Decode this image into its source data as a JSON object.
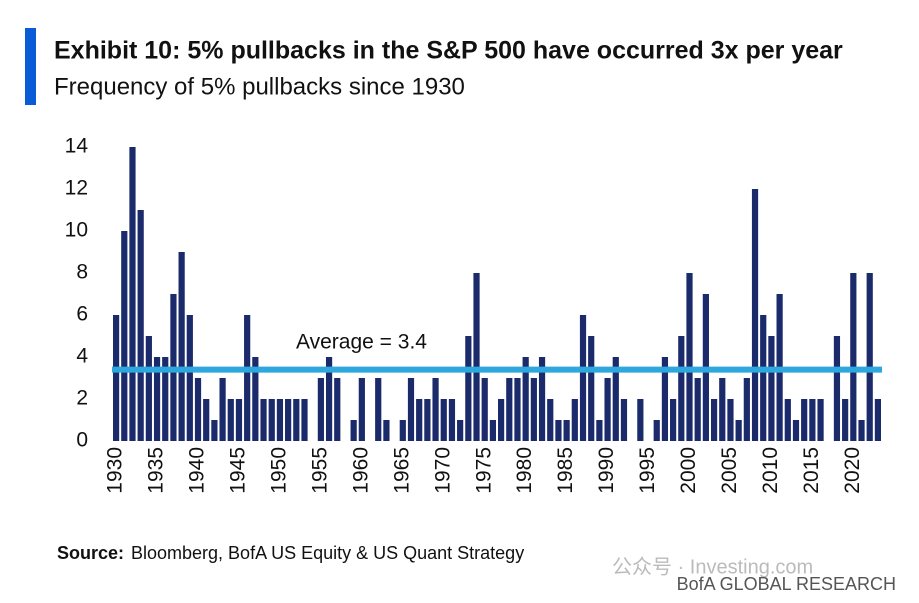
{
  "chart_data": {
    "type": "bar",
    "title": "Exhibit 10: 5% pullbacks in the S&P 500 have occurred 3x per year",
    "subtitle": "Frequency of 5% pullbacks since 1930",
    "categories": [
      "1930",
      null,
      null,
      null,
      null,
      "1935",
      null,
      null,
      null,
      null,
      "1940",
      null,
      null,
      null,
      null,
      "1945",
      null,
      null,
      null,
      null,
      "1950",
      null,
      null,
      null,
      null,
      "1955",
      null,
      null,
      null,
      null,
      "1960",
      null,
      null,
      null,
      null,
      "1965",
      null,
      null,
      null,
      null,
      "1970",
      null,
      null,
      null,
      null,
      "1975",
      null,
      null,
      null,
      null,
      "1980",
      null,
      null,
      null,
      null,
      "1985",
      null,
      null,
      null,
      null,
      "1990",
      null,
      null,
      null,
      null,
      "1995",
      null,
      null,
      null,
      null,
      "2000",
      null,
      null,
      null,
      null,
      "2005",
      null,
      null,
      null,
      null,
      "2010",
      null,
      null,
      null,
      null,
      "2015",
      null,
      null,
      null,
      null,
      "2020",
      null,
      null,
      null
    ],
    "values": [
      6,
      10,
      14,
      11,
      5,
      4,
      4,
      7,
      9,
      6,
      3,
      2,
      1,
      3,
      2,
      2,
      6,
      4,
      2,
      2,
      2,
      2,
      2,
      2,
      0,
      3,
      4,
      3,
      0,
      1,
      3,
      0,
      3,
      1,
      0,
      1,
      3,
      2,
      2,
      3,
      2,
      2,
      1,
      5,
      8,
      3,
      1,
      2,
      3,
      3,
      4,
      3,
      4,
      2,
      1,
      1,
      2,
      6,
      5,
      1,
      3,
      4,
      2,
      0,
      2,
      0,
      1,
      4,
      2,
      5,
      8,
      3,
      7,
      2,
      3,
      2,
      1,
      3,
      12,
      6,
      5,
      7,
      2,
      1,
      2,
      2,
      2,
      0,
      5,
      2,
      8,
      1,
      8,
      2
    ],
    "color": "#1b2a6b",
    "average": 3.4,
    "average_color": "#2ea6de",
    "average_label": "Average = 3.4",
    "ylim": [
      0,
      14
    ],
    "yticks": [
      0,
      2,
      4,
      6,
      8,
      10,
      12,
      14
    ],
    "source_label": "Source:",
    "source": "Bloomberg, BofA US Equity & US Quant Strategy",
    "watermark": "公众号 · Investing.com",
    "brand": "BofA GLOBAL RESEARCH"
  }
}
